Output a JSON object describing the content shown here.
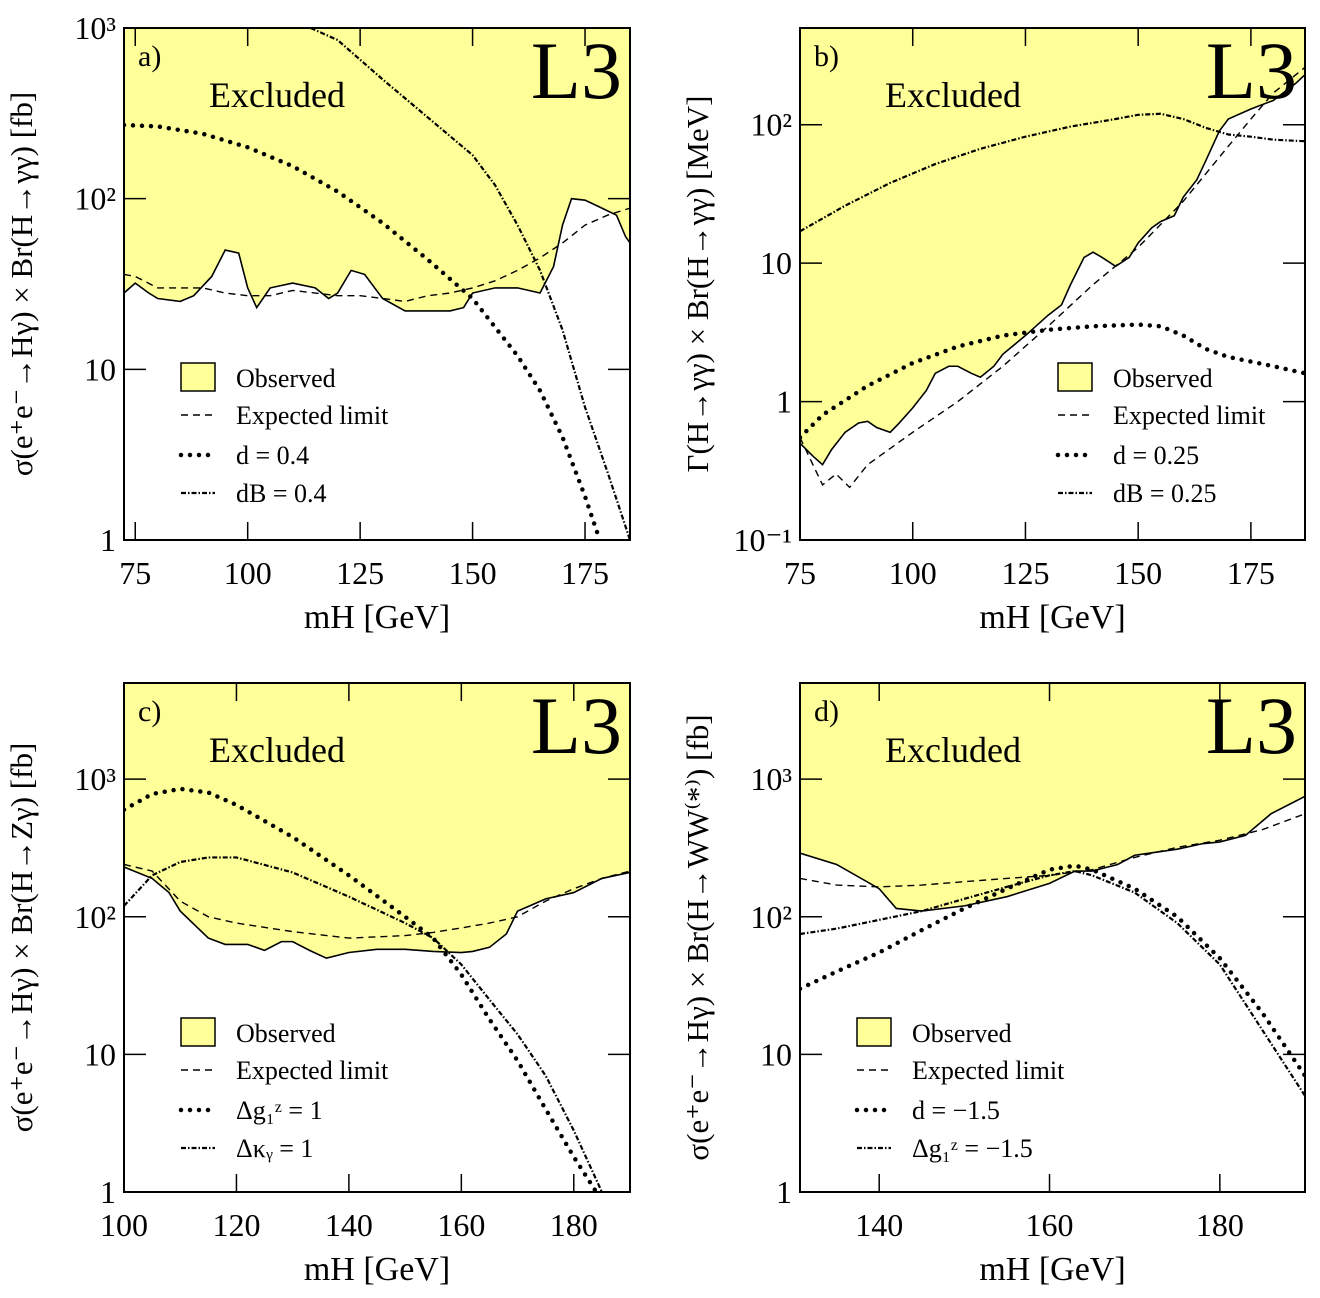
{
  "chart_data": [
    {
      "type": "line",
      "panel_label": "a)",
      "watermark": "L3",
      "annotation": "Excluded",
      "xlabel": "mH [GeV]",
      "ylabel": "σ(e⁺e⁻→Hγ) × Br(H→γγ)  [fb]",
      "xlim": [
        72.5,
        185
      ],
      "ylim": [
        1,
        1000
      ],
      "log_y": true,
      "legend": "lower left",
      "xticks": [
        75,
        100,
        125,
        150,
        175
      ],
      "yticks": [
        1,
        10,
        {
          "value": 100,
          "label": "10²"
        },
        {
          "value": 1000,
          "label": "10³"
        }
      ],
      "series": [
        {
          "name": "Observed",
          "color": "#000000",
          "style": "solid",
          "fill": "#ffff99",
          "x": [
            72.5,
            75,
            78,
            80,
            85,
            88,
            92,
            95,
            98,
            100,
            102,
            105,
            110,
            115,
            118,
            120,
            123,
            126,
            130,
            135,
            140,
            145,
            148,
            150,
            155,
            160,
            165,
            168,
            170,
            172,
            175,
            178,
            182,
            184,
            185
          ],
          "values": [
            28,
            32,
            28,
            26,
            25,
            27,
            35,
            50,
            48,
            30,
            23,
            30,
            32,
            30,
            26,
            28,
            38,
            36,
            26,
            22,
            22,
            22,
            23,
            28,
            30,
            30,
            28,
            40,
            70,
            100,
            98,
            90,
            80,
            60,
            55
          ]
        },
        {
          "name": "Expected limit",
          "color": "#000000",
          "style": "dashed",
          "x": [
            72.5,
            75,
            80,
            85,
            90,
            95,
            100,
            105,
            110,
            115,
            120,
            125,
            130,
            135,
            140,
            145,
            150,
            155,
            160,
            165,
            170,
            175,
            180,
            185
          ],
          "values": [
            36,
            35,
            30,
            30,
            30,
            28,
            27,
            27,
            29,
            28,
            27,
            27,
            26,
            25,
            27,
            28,
            30,
            33,
            38,
            45,
            55,
            70,
            80,
            88
          ]
        },
        {
          "name": "d   = 0.4",
          "color": "#000000",
          "style": "dotted",
          "x": [
            72.5,
            80,
            90,
            100,
            110,
            120,
            130,
            140,
            150,
            160,
            165,
            170,
            175,
            178
          ],
          "values": [
            270,
            265,
            240,
            200,
            155,
            110,
            72,
            44,
            26,
            12,
            7.5,
            4,
            1.8,
            1.05
          ]
        },
        {
          "name": "dB = 0.4",
          "color": "#000000",
          "style": "dashdot",
          "x": [
            114,
            120,
            130,
            140,
            150,
            155,
            160,
            165,
            170,
            175,
            180,
            185
          ],
          "values": [
            1000,
            850,
            500,
            300,
            180,
            120,
            70,
            38,
            17,
            6,
            2.5,
            1
          ]
        }
      ]
    },
    {
      "type": "line",
      "panel_label": "b)",
      "watermark": "L3",
      "annotation": "Excluded",
      "xlabel": "mH [GeV]",
      "ylabel": "Γ(H→γγ) × Br(H→γγ)  [MeV]",
      "xlim": [
        75,
        187
      ],
      "ylim": [
        0.1,
        500
      ],
      "log_y": true,
      "legend": "lower right",
      "xticks": [
        75,
        100,
        125,
        150,
        175
      ],
      "yticks": [
        {
          "value": 0.1,
          "label": "10⁻¹"
        },
        1,
        10,
        {
          "value": 100,
          "label": "10²"
        }
      ],
      "series": [
        {
          "name": "Observed",
          "color": "#000000",
          "style": "solid",
          "fill": "#ffff99",
          "x": [
            75,
            78,
            80,
            82,
            85,
            88,
            90,
            92,
            95,
            97,
            100,
            103,
            105,
            108,
            110,
            113,
            115,
            118,
            120,
            125,
            130,
            133,
            135,
            138,
            140,
            142,
            145,
            148,
            150,
            153,
            155,
            158,
            160,
            163,
            165,
            168,
            170,
            175,
            180,
            185,
            187
          ],
          "values": [
            0.5,
            0.4,
            0.35,
            0.45,
            0.6,
            0.7,
            0.72,
            0.65,
            0.6,
            0.7,
            0.9,
            1.2,
            1.6,
            1.8,
            1.8,
            1.6,
            1.5,
            1.8,
            2.2,
            3,
            4.2,
            5,
            7,
            11,
            12,
            11,
            9.5,
            11,
            14,
            18,
            20,
            22,
            30,
            40,
            55,
            90,
            110,
            130,
            150,
            200,
            230
          ]
        },
        {
          "name": "Expected limit",
          "color": "#000000",
          "style": "dashed",
          "x": [
            75,
            80,
            83,
            86,
            90,
            100,
            110,
            120,
            130,
            140,
            150,
            160,
            170,
            175,
            180,
            187
          ],
          "values": [
            0.55,
            0.25,
            0.3,
            0.24,
            0.35,
            0.6,
            1.0,
            1.8,
            3.5,
            7,
            13,
            28,
            70,
            110,
            170,
            260
          ]
        },
        {
          "name": "d   = 0.25",
          "color": "#000000",
          "style": "dotted",
          "x": [
            75,
            80,
            90,
            100,
            110,
            120,
            130,
            140,
            150,
            155,
            160,
            165,
            170,
            180,
            187
          ],
          "values": [
            0.55,
            0.8,
            1.3,
            1.9,
            2.5,
            3.0,
            3.3,
            3.5,
            3.6,
            3.5,
            3.0,
            2.4,
            2.1,
            1.8,
            1.6
          ]
        },
        {
          "name": "dB = 0.25",
          "color": "#000000",
          "style": "dashdot",
          "x": [
            75,
            85,
            95,
            105,
            115,
            125,
            135,
            145,
            150,
            155,
            160,
            165,
            170,
            175,
            180,
            187
          ],
          "values": [
            17,
            26,
            38,
            52,
            67,
            82,
            97,
            110,
            118,
            120,
            110,
            95,
            85,
            82,
            78,
            76
          ]
        }
      ]
    },
    {
      "type": "line",
      "panel_label": "c)",
      "watermark": "L3",
      "annotation": "Excluded",
      "xlabel": "mH [GeV]",
      "ylabel": "σ(e⁺e⁻→Hγ) × Br(H→Zγ)  [fb]",
      "xlim": [
        100,
        190
      ],
      "ylim": [
        1,
        5000
      ],
      "log_y": true,
      "legend": "lower left",
      "xticks": [
        100,
        120,
        140,
        160,
        180
      ],
      "yticks": [
        1,
        10,
        {
          "value": 100,
          "label": "10²"
        },
        {
          "value": 1000,
          "label": "10³"
        }
      ],
      "series": [
        {
          "name": "Observed",
          "color": "#000000",
          "style": "solid",
          "fill": "#ffff99",
          "x": [
            100,
            105,
            108,
            110,
            115,
            118,
            122,
            125,
            128,
            130,
            133,
            136,
            140,
            145,
            150,
            155,
            160,
            162,
            165,
            168,
            170,
            175,
            180,
            185,
            190
          ],
          "values": [
            230,
            190,
            150,
            110,
            70,
            63,
            63,
            57,
            66,
            66,
            57,
            50,
            55,
            58,
            58,
            56,
            55,
            56,
            60,
            75,
            110,
            135,
            150,
            190,
            210
          ]
        },
        {
          "name": "Expected limit",
          "color": "#000000",
          "style": "dashed",
          "x": [
            100,
            105,
            110,
            115,
            120,
            130,
            140,
            150,
            155,
            160,
            165,
            170,
            175,
            180,
            185,
            190
          ],
          "values": [
            240,
            215,
            130,
            100,
            90,
            78,
            70,
            73,
            77,
            83,
            90,
            100,
            130,
            160,
            190,
            215
          ]
        },
        {
          "name": "Δg₁ᶻ = 1",
          "color": "#000000",
          "style": "dotted",
          "x": [
            100,
            105,
            110,
            115,
            120,
            130,
            140,
            150,
            155,
            160,
            165,
            170,
            175,
            180,
            184
          ],
          "values": [
            600,
            780,
            850,
            800,
            650,
            380,
            200,
            100,
            70,
            38,
            18,
            9,
            4,
            1.8,
            1
          ]
        },
        {
          "name": "Δκᵧ = 1",
          "color": "#000000",
          "style": "dashdot",
          "x": [
            100,
            105,
            110,
            115,
            120,
            130,
            140,
            150,
            155,
            160,
            165,
            170,
            175,
            180,
            185
          ],
          "values": [
            120,
            200,
            250,
            270,
            270,
            210,
            140,
            90,
            70,
            45,
            25,
            14,
            7,
            2.8,
            1
          ]
        }
      ]
    },
    {
      "type": "line",
      "panel_label": "d)",
      "watermark": "L3",
      "annotation": "Excluded",
      "xlabel": "mH [GeV]",
      "ylabel": "σ(e⁺e⁻→Hγ) × Br(H→WW⁽*⁾)  [fb]",
      "xlim": [
        130.7,
        190
      ],
      "ylim": [
        1,
        5000
      ],
      "log_y": true,
      "legend": "lower left",
      "xticks": [
        140,
        160,
        180
      ],
      "yticks": [
        1,
        10,
        {
          "value": 100,
          "label": "10²"
        },
        {
          "value": 1000,
          "label": "10³"
        }
      ],
      "series": [
        {
          "name": "Observed",
          "color": "#000000",
          "style": "solid",
          "fill": "#ffff99",
          "x": [
            130.7,
            135,
            140,
            142,
            145,
            150,
            155,
            160,
            163,
            165,
            168,
            170,
            175,
            178,
            180,
            183,
            186,
            190
          ],
          "values": [
            290,
            240,
            160,
            115,
            110,
            120,
            140,
            175,
            215,
            215,
            240,
            280,
            310,
            340,
            350,
            390,
            560,
            750
          ]
        },
        {
          "name": "Expected limit",
          "color": "#000000",
          "style": "dashed",
          "x": [
            130.7,
            135,
            140,
            145,
            150,
            155,
            160,
            165,
            170,
            175,
            180,
            185,
            190
          ],
          "values": [
            190,
            170,
            165,
            170,
            180,
            190,
            200,
            220,
            270,
            320,
            360,
            430,
            560
          ]
        },
        {
          "name": "d     = −1.5",
          "color": "#000000",
          "style": "dotted",
          "x": [
            130.7,
            135,
            140,
            145,
            150,
            155,
            160,
            163,
            165,
            170,
            175,
            180,
            185,
            190
          ],
          "values": [
            30,
            40,
            55,
            80,
            115,
            160,
            220,
            235,
            220,
            160,
            100,
            50,
            20,
            7
          ]
        },
        {
          "name": "Δg₁ᶻ = −1.5",
          "color": "#000000",
          "style": "dashdot",
          "x": [
            130.7,
            135,
            140,
            145,
            150,
            155,
            160,
            163,
            165,
            170,
            175,
            180,
            185,
            190
          ],
          "values": [
            75,
            82,
            95,
            110,
            135,
            165,
            200,
            215,
            200,
            150,
            90,
            45,
            15,
            5
          ]
        }
      ]
    }
  ]
}
